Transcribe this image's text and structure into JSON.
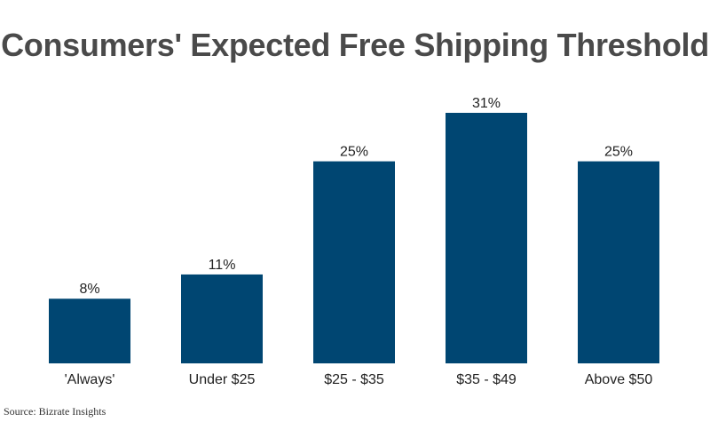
{
  "chart_data": {
    "type": "bar",
    "title": "Consumers' Expected Free Shipping Threshold",
    "categories": [
      "'Always'",
      "Under $25",
      "$25 - $35",
      "$35 - $49",
      "Above $50"
    ],
    "values": [
      8,
      11,
      25,
      31,
      25
    ],
    "value_labels": [
      "8%",
      "11%",
      "25%",
      "31%",
      "25%"
    ],
    "unit": "%",
    "ylim": [
      0,
      31
    ],
    "grid": false,
    "legend": "none",
    "colors": {
      "bar": "#004672",
      "title": "#4a4a4a",
      "text": "#222222"
    }
  },
  "source": "Source: Bizrate Insights"
}
